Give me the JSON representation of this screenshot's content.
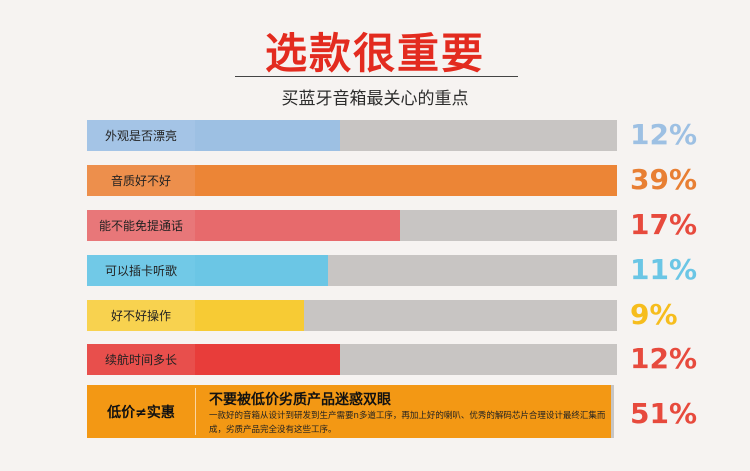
{
  "header": {
    "title": "选款很重要",
    "subtitle": "买蓝牙音箱最关心的重点"
  },
  "chart_data": {
    "type": "bar",
    "orientation": "horizontal",
    "title": "选款很重要",
    "subtitle": "买蓝牙音箱最关心的重点",
    "categories": [
      "外观是否漂亮",
      "音质好不好",
      "能不能免提通话",
      "可以插卡听歌",
      "好不好操作",
      "续航时间多长",
      "低价≠实惠"
    ],
    "values": [
      12,
      39,
      17,
      11,
      9,
      12,
      51
    ],
    "value_labels": [
      "12%",
      "39%",
      "17%",
      "11%",
      "9%",
      "12%",
      "51%"
    ],
    "unit": "%",
    "colors": [
      "#9dc0e3",
      "#ec8536",
      "#e76a6c",
      "#6bc6e5",
      "#f7cb34",
      "#e83d3a",
      "#f39814"
    ],
    "label_colors": [
      "#9dc0e3",
      "#e87f33",
      "#e74a3d",
      "#6bc6e5",
      "#f6bd1d",
      "#e74a3d",
      "#e74a3d"
    ],
    "label_box_colors": [
      "#a4c4e6",
      "#ed8f4c",
      "#e87779",
      "#71c9e7",
      "#f8d24f",
      "#e84f4c",
      "#f39814"
    ],
    "track_color": "#c8c5c3",
    "grid": false,
    "legend": "none"
  },
  "callout": {
    "label": "低价≠实惠",
    "title": "不要被低价劣质产品迷惑双眼",
    "body": "一款好的音箱从设计到研发到生产需要n多道工序，再加上好的喇叭、优秀的解码芯片合理设计最终汇集而成，劣质产品完全没有这些工序。",
    "percent": "51%"
  }
}
